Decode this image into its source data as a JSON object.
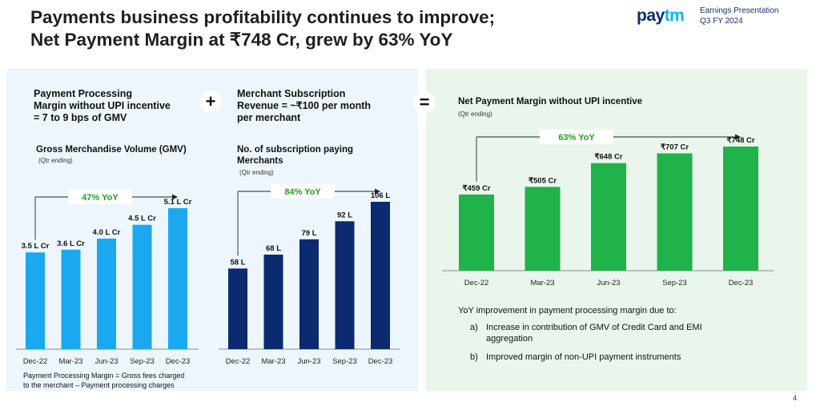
{
  "header": {
    "title_line1": "Payments business profitability continues to improve;",
    "title_line2": "Net Payment Margin at ₹748 Cr, grew by 63% YoY",
    "logo_part1": "pay",
    "logo_part2": "tm",
    "presentation_line1": "Earnings Presentation",
    "presentation_line2": "Q3 FY 2024"
  },
  "left_panel": {
    "ppm_heading_line1": "Payment Processing",
    "ppm_heading_line2": "Margin without UPI incentive",
    "ppm_heading_line3": "= 7 to 9 bps of GMV",
    "plus_symbol": "+",
    "subscription_heading_line1": "Merchant Subscription",
    "subscription_heading_line2": "Revenue = ~₹100 per month",
    "subscription_heading_line3": "per merchant",
    "equals_symbol": "=",
    "footnote_line1": "Payment Processing Margin = Gross fees charged",
    "footnote_line2": "to the merchant – Payment processing charges"
  },
  "right_panel": {
    "intro": "YoY improvement in payment processing margin due to:",
    "points": [
      {
        "marker": "a)",
        "text_line1": "Increase in contribution of GMV of Credit Card and EMI",
        "text_line2": "aggregation"
      },
      {
        "marker": "b)",
        "text_line1": "Improved margin of non-UPI payment instruments",
        "text_line2": ""
      }
    ]
  },
  "page_number": "4",
  "chart_data": [
    {
      "type": "bar",
      "title": "Gross Merchandise Volume (GMV)",
      "subtitle": "(Qtr ending)",
      "categories": [
        "Dec-22",
        "Mar-23",
        "Jun-23",
        "Sep-23",
        "Dec-23"
      ],
      "values": [
        3.5,
        3.6,
        4.0,
        4.5,
        5.1
      ],
      "labels": [
        "3.5 L Cr",
        "3.6 L Cr",
        "4.0 L Cr",
        "4.5 L Cr",
        "5.1 L Cr"
      ],
      "unit": "L Cr",
      "growth_label": "47% YoY",
      "color": "#1aa9f0",
      "ylim": [
        0,
        5.1
      ]
    },
    {
      "type": "bar",
      "title": "No. of subscription paying Merchants",
      "subtitle": "(Qtr ending)",
      "categories": [
        "Dec-22",
        "Mar-23",
        "Jun-23",
        "Sep-23",
        "Dec-23"
      ],
      "values": [
        58,
        68,
        79,
        92,
        106
      ],
      "labels": [
        "58 L",
        "68 L",
        "79 L",
        "92 L",
        "106 L"
      ],
      "unit": "L",
      "growth_label": "84% YoY",
      "color": "#0b2a70",
      "ylim": [
        0,
        106
      ]
    },
    {
      "type": "bar",
      "title": "Net Payment Margin without UPI incentive",
      "subtitle": "(Qtr ending)",
      "categories": [
        "Dec-22",
        "Mar-23",
        "Jun-23",
        "Sep-23",
        "Dec-23"
      ],
      "values": [
        459,
        505,
        648,
        707,
        748
      ],
      "labels": [
        "₹459 Cr",
        "₹505 Cr",
        "₹648 Cr",
        "₹707 Cr",
        "₹748 Cr"
      ],
      "unit": "₹ Cr",
      "growth_label": "63% YoY",
      "color": "#1fb34a",
      "ylim": [
        0,
        748
      ]
    }
  ]
}
